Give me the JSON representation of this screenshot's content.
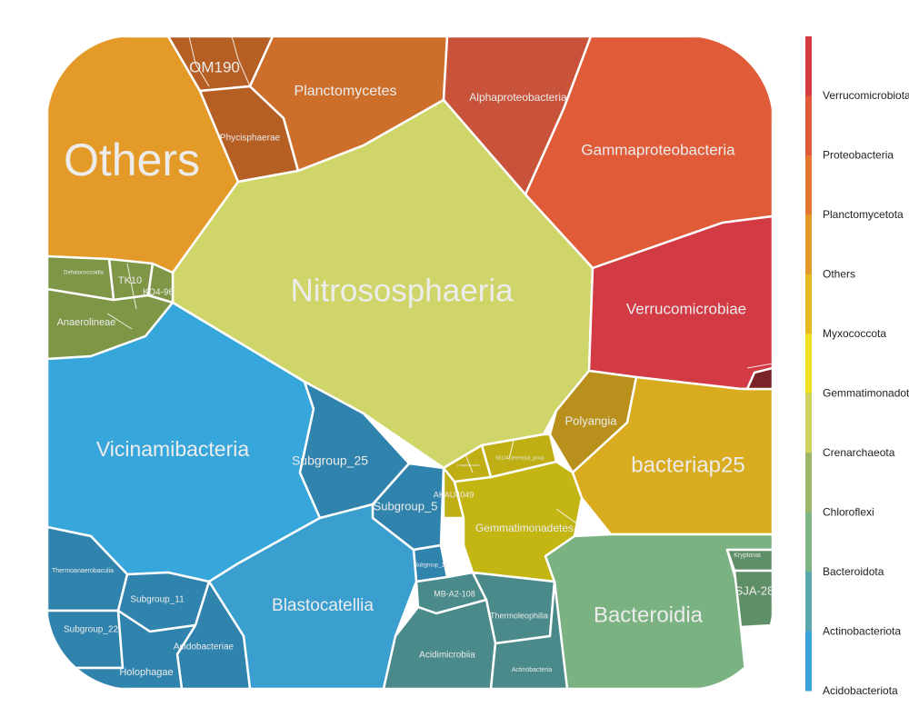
{
  "chart_data": {
    "type": "voronoi-treemap",
    "title": "",
    "legend": {
      "position": "right",
      "items": [
        {
          "label": "Verrucomicrobiota",
          "color": "#d63a44"
        },
        {
          "label": "Proteobacteria",
          "color": "#e05a3a"
        },
        {
          "label": "Planctomycetota",
          "color": "#e2772f"
        },
        {
          "label": "Others",
          "color": "#e39a28"
        },
        {
          "label": "Myxococcota",
          "color": "#e7bb1f"
        },
        {
          "label": "Gemmatimonadota",
          "color": "#efe121"
        },
        {
          "label": "Crenarchaeota",
          "color": "#cfd35e"
        },
        {
          "label": "Chloroflexi",
          "color": "#9cb567"
        },
        {
          "label": "Bacteroidota",
          "color": "#7fb585"
        },
        {
          "label": "Actinobacteriota",
          "color": "#5aa7ae"
        },
        {
          "label": "Acidobacteriota",
          "color": "#37a3d6"
        }
      ]
    },
    "cells": [
      {
        "label": "Others",
        "phylum": "Others",
        "color": "#e39a28"
      },
      {
        "label": "OM190",
        "phylum": "Planctomycetota",
        "color": "#b55f24"
      },
      {
        "label": "Phycisphaerae",
        "phylum": "Planctomycetota",
        "color": "#b55f24"
      },
      {
        "label": "Planctomycetes",
        "phylum": "Planctomycetota",
        "color": "#cd6f2a"
      },
      {
        "label": "Alphaproteobacteria",
        "phylum": "Proteobacteria",
        "color": "#c9523a"
      },
      {
        "label": "Gammaproteobacteria",
        "phylum": "Proteobacteria",
        "color": "#e05b38"
      },
      {
        "label": "Nitrososphaeria",
        "phylum": "Crenarchaeota",
        "color": "#cfd569"
      },
      {
        "label": "Verrucomicrobiae",
        "phylum": "Verrucomicrobiota",
        "color": "#d23a44"
      },
      {
        "label": "TK10",
        "phylum": "Chloroflexi",
        "color": "#7e9645"
      },
      {
        "label": "KD4-96",
        "phylum": "Chloroflexi",
        "color": "#7e9645"
      },
      {
        "label": "Anaerolineae",
        "phylum": "Chloroflexi",
        "color": "#7e9645"
      },
      {
        "label": "Dehalococcoidia",
        "phylum": "Chloroflexi",
        "color": "#7e9645"
      },
      {
        "label": "Vicinamibacteria",
        "phylum": "Acidobacteriota",
        "color": "#37a6da"
      },
      {
        "label": "Subgroup_25",
        "phylum": "Acidobacteriota",
        "color": "#2f83ad"
      },
      {
        "label": "Subgroup_5",
        "phylum": "Acidobacteriota",
        "color": "#2f83ad"
      },
      {
        "label": "Subgroup_18",
        "phylum": "Acidobacteriota",
        "color": "#2f83ad"
      },
      {
        "label": "Blastocatellia",
        "phylum": "Acidobacteriota",
        "color": "#3a9fcf"
      },
      {
        "label": "Thermoanaerobaculia",
        "phylum": "Acidobacteriota",
        "color": "#2f83ad"
      },
      {
        "label": "Subgroup_11",
        "phylum": "Acidobacteriota",
        "color": "#2f83ad"
      },
      {
        "label": "Subgroup_22",
        "phylum": "Acidobacteriota",
        "color": "#2f83ad"
      },
      {
        "label": "Acidobacteriae",
        "phylum": "Acidobacteriota",
        "color": "#2f83ad"
      },
      {
        "label": "Holophagae",
        "phylum": "Acidobacteriota",
        "color": "#2f83ad"
      },
      {
        "label": "Polyangia",
        "phylum": "Myxococcota",
        "color": "#b8901b"
      },
      {
        "label": "bacteriap25",
        "phylum": "Myxococcota",
        "color": "#d9ac20"
      },
      {
        "label": "AKAU4049",
        "phylum": "Gemmatimonadota",
        "color": "#bfae14"
      },
      {
        "label": "Gemmatimonadetes",
        "phylum": "Gemmatimonadota",
        "color": "#c3b512"
      },
      {
        "label": "S0134_terrestrial_group",
        "phylum": "Gemmatimonadota",
        "color": "#bfae14"
      },
      {
        "label": "Longimicrobia",
        "phylum": "Gemmatimonadota",
        "color": "#bfae14"
      },
      {
        "label": "Bacteroidia",
        "phylum": "Bacteroidota",
        "color": "#7bb282"
      },
      {
        "label": "Kryptonia",
        "phylum": "Bacteroidota",
        "color": "#5f8f66"
      },
      {
        "label": "SJA-28",
        "phylum": "Bacteroidota",
        "color": "#5f8f66"
      },
      {
        "label": "MB-A2-108",
        "phylum": "Actinobacteriota",
        "color": "#4a8a8a"
      },
      {
        "label": "Thermoleophilia",
        "phylum": "Actinobacteriota",
        "color": "#4a8a8a"
      },
      {
        "label": "Acidimicrobiia",
        "phylum": "Actinobacteriota",
        "color": "#4a8a8a"
      },
      {
        "label": "Actinobacteria",
        "phylum": "Actinobacteriota",
        "color": "#4a8a8a"
      }
    ]
  }
}
